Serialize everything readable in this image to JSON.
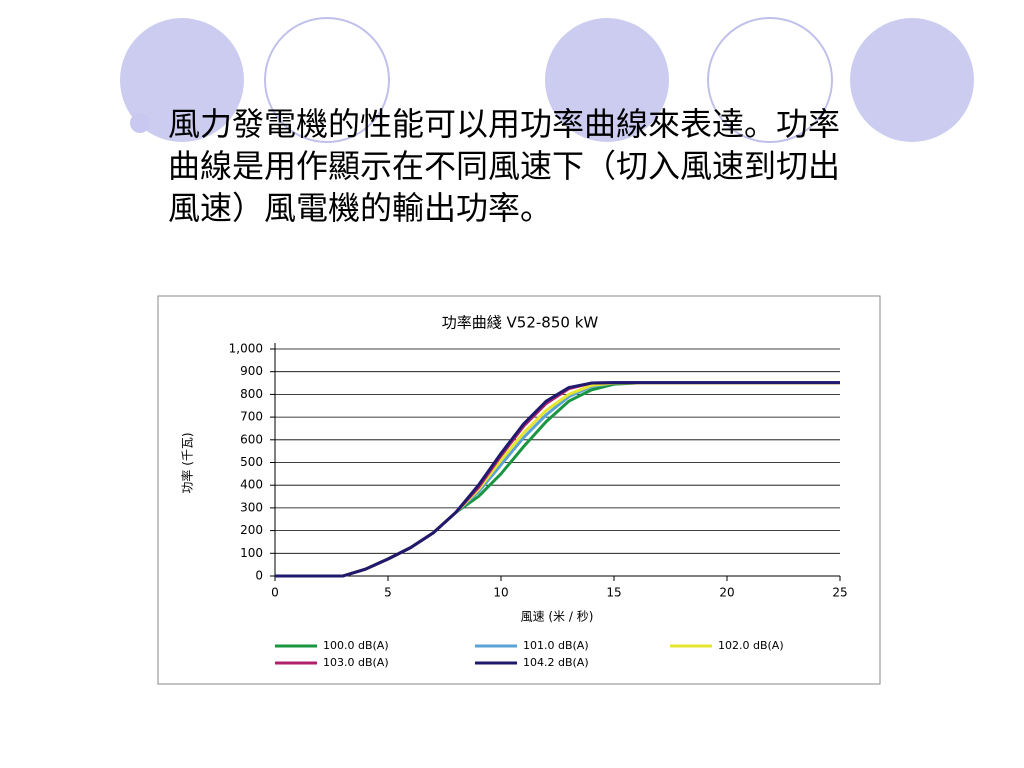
{
  "slide": {
    "bullet": "風力發電機的性能可以用功率曲線來表達。功率曲線是用作顯示在不同風速下（切入風速到切出風速）風電機的輸出功率。"
  },
  "chart_data": {
    "type": "line",
    "title": "功率曲綫 V52-850 kW",
    "x_label": "風速 (米 / 秒)",
    "y_label": "功率 (千瓦)",
    "x": [
      0,
      3,
      4,
      5,
      6,
      7,
      8,
      9,
      10,
      11,
      12,
      13,
      14,
      15,
      16,
      17,
      20,
      25
    ],
    "series": [
      {
        "name": "100.0 dB(A)",
        "color": "#1a9641",
        "values": [
          0,
          0,
          30,
          75,
          125,
          190,
          280,
          350,
          450,
          570,
          680,
          770,
          820,
          845,
          850,
          850,
          850,
          850
        ]
      },
      {
        "name": "101.0 dB(A)",
        "color": "#5ba3d6",
        "values": [
          0,
          0,
          30,
          75,
          125,
          190,
          280,
          370,
          490,
          610,
          710,
          790,
          835,
          850,
          850,
          850,
          850,
          850
        ]
      },
      {
        "name": "102.0 dB(A)",
        "color": "#e6e62e",
        "values": [
          0,
          0,
          30,
          75,
          125,
          190,
          280,
          380,
          510,
          630,
          730,
          800,
          840,
          850,
          850,
          850,
          850,
          850
        ]
      },
      {
        "name": "103.0 dB(A)",
        "color": "#b0206b",
        "values": [
          0,
          0,
          30,
          75,
          125,
          190,
          280,
          390,
          530,
          660,
          760,
          825,
          850,
          852,
          852,
          852,
          852,
          852
        ]
      },
      {
        "name": "104.2 dB(A)",
        "color": "#1f1a6e",
        "values": [
          0,
          0,
          30,
          75,
          125,
          190,
          280,
          400,
          540,
          670,
          770,
          830,
          850,
          852,
          852,
          852,
          852,
          852
        ]
      }
    ],
    "xlim": [
      0,
      25
    ],
    "xticks": [
      0,
      5,
      10,
      15,
      20,
      25
    ],
    "ylim": [
      0,
      1000
    ],
    "yticks": [
      0,
      100,
      200,
      300,
      400,
      500,
      600,
      700,
      800,
      900,
      {
        "value": 1000,
        "label": "1,000"
      }
    ],
    "grid": true
  }
}
